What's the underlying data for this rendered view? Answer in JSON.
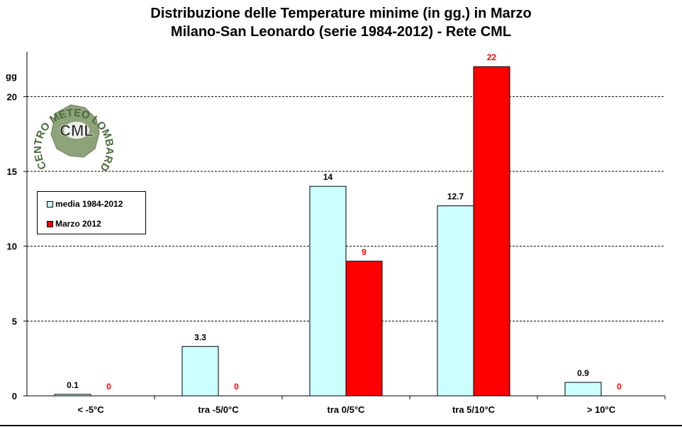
{
  "title_line1": "Distribuzione  delle  Temperature  minime  (in  gg.)  in  Marzo",
  "title_line2": "Milano-San  Leonardo  (serie  1984-2012)  - Rete  CML",
  "logo": {
    "arc_text": "CENTRO METEO LOMBARDO",
    "center_text": "CML"
  },
  "colors": {
    "media": "#ccffff",
    "marzo": "#ff0000",
    "marzo_label": "#ff0000"
  },
  "chart_data": {
    "type": "bar",
    "title": "Distribuzione  delle  Temperature  minime  (in  gg.)  in  Marzo",
    "subtitle": "Milano-San  Leonardo  (serie  1984-2012)  - Rete  CML",
    "ylabel": "gg",
    "xlabel": "",
    "ylim": [
      0,
      23
    ],
    "yticks": [
      0,
      5,
      10,
      15,
      20
    ],
    "grid": true,
    "legend_position": "left",
    "categories": [
      "< -5°C",
      "tra -5/0°C",
      "tra 0/5°C",
      "tra 5/10°C",
      "> 10°C"
    ],
    "series": [
      {
        "name": "media 1984-2012",
        "values": [
          0.1,
          3.3,
          14,
          12.7,
          0.9
        ],
        "labels": [
          "0.1",
          "3.3",
          "14",
          "12.7",
          "0.9"
        ]
      },
      {
        "name": "Marzo 2012",
        "values": [
          0,
          0,
          9,
          22,
          0
        ],
        "labels": [
          "0",
          "0",
          "9",
          "22",
          "0"
        ]
      }
    ]
  }
}
